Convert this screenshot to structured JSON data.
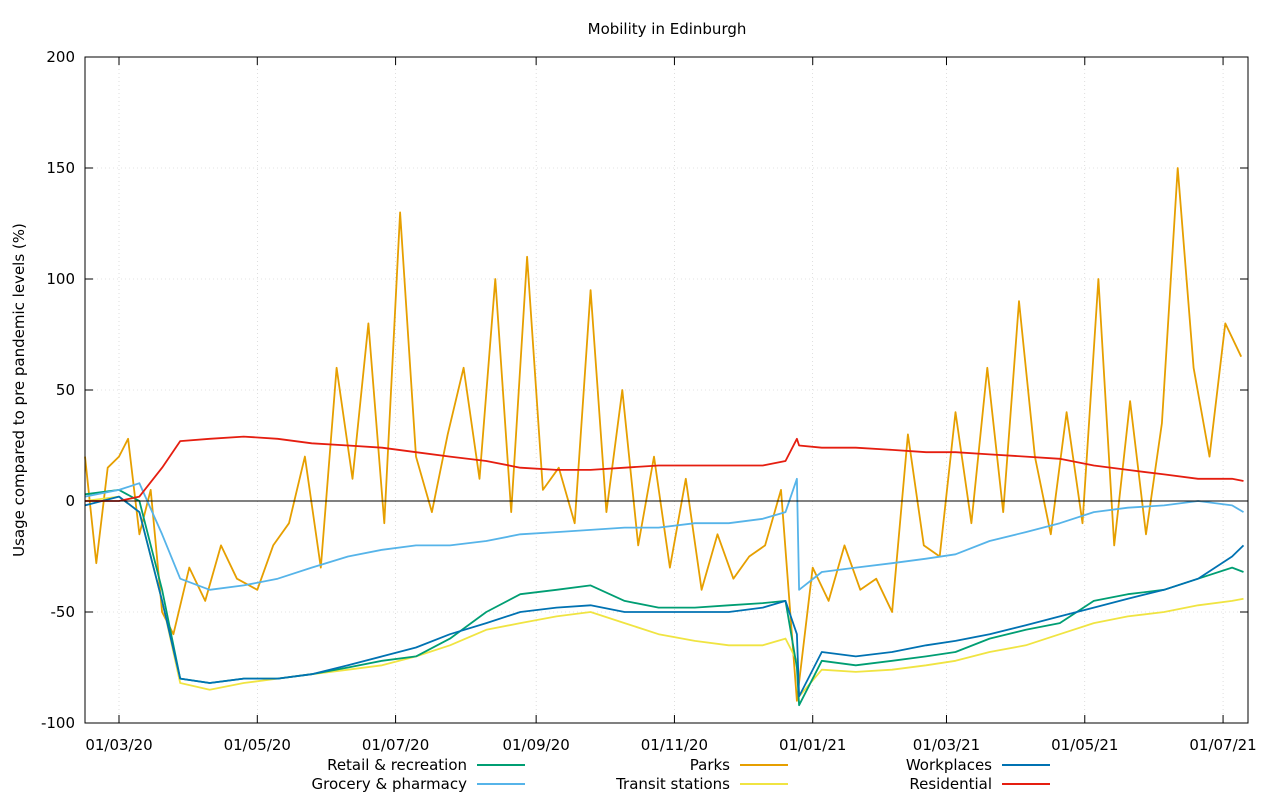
{
  "chart_data": {
    "type": "line",
    "title": "Mobility in Edinburgh",
    "ylabel": "Usage compared to pre pandemic levels (%)",
    "xlabel": "",
    "xlim": [
      "2020-02-15",
      "2021-07-12"
    ],
    "ylim": [
      -100,
      200
    ],
    "y_ticks": [
      -100,
      -50,
      0,
      50,
      100,
      150,
      200
    ],
    "x_ticks": [
      "01/03/20",
      "01/05/20",
      "01/07/20",
      "01/09/20",
      "01/11/20",
      "01/01/21",
      "01/03/21",
      "01/05/21",
      "01/07/21"
    ],
    "x_tick_dates": [
      "2020-03-01",
      "2020-05-01",
      "2020-07-01",
      "2020-09-01",
      "2020-11-01",
      "2021-01-01",
      "2021-03-01",
      "2021-05-01",
      "2021-07-01"
    ],
    "grid": true,
    "zero_line": true,
    "legend_position": "bottom",
    "series": [
      {
        "name": "Retail & recreation",
        "color": "#009e73",
        "dates": [
          "2020-02-15",
          "2020-03-01",
          "2020-03-10",
          "2020-03-20",
          "2020-03-28",
          "2020-04-10",
          "2020-04-25",
          "2020-05-10",
          "2020-05-25",
          "2020-06-10",
          "2020-06-25",
          "2020-07-10",
          "2020-07-25",
          "2020-08-10",
          "2020-08-25",
          "2020-09-10",
          "2020-09-25",
          "2020-10-10",
          "2020-10-25",
          "2020-11-10",
          "2020-11-25",
          "2020-12-10",
          "2020-12-20",
          "2020-12-25",
          "2020-12-26",
          "2021-01-05",
          "2021-01-20",
          "2021-02-05",
          "2021-02-20",
          "2021-03-05",
          "2021-03-20",
          "2021-04-05",
          "2021-04-20",
          "2021-05-05",
          "2021-05-20",
          "2021-06-05",
          "2021-06-20",
          "2021-07-05",
          "2021-07-10"
        ],
        "values": [
          3,
          5,
          0,
          -40,
          -80,
          -82,
          -80,
          -80,
          -78,
          -75,
          -72,
          -70,
          -62,
          -50,
          -42,
          -40,
          -38,
          -45,
          -48,
          -48,
          -47,
          -46,
          -45,
          -75,
          -92,
          -72,
          -74,
          -72,
          -70,
          -68,
          -62,
          -58,
          -55,
          -45,
          -42,
          -40,
          -35,
          -30,
          -32
        ]
      },
      {
        "name": "Grocery & pharmacy",
        "color": "#56b4e9",
        "dates": [
          "2020-02-15",
          "2020-03-01",
          "2020-03-10",
          "2020-03-20",
          "2020-03-28",
          "2020-04-10",
          "2020-04-25",
          "2020-05-10",
          "2020-05-25",
          "2020-06-10",
          "2020-06-25",
          "2020-07-10",
          "2020-07-25",
          "2020-08-10",
          "2020-08-25",
          "2020-09-10",
          "2020-09-25",
          "2020-10-10",
          "2020-10-25",
          "2020-11-10",
          "2020-11-25",
          "2020-12-10",
          "2020-12-20",
          "2020-12-25",
          "2020-12-26",
          "2021-01-05",
          "2021-01-20",
          "2021-02-05",
          "2021-02-20",
          "2021-03-05",
          "2021-03-20",
          "2021-04-05",
          "2021-04-20",
          "2021-05-05",
          "2021-05-20",
          "2021-06-05",
          "2021-06-20",
          "2021-07-05",
          "2021-07-10"
        ],
        "values": [
          2,
          5,
          8,
          -15,
          -35,
          -40,
          -38,
          -35,
          -30,
          -25,
          -22,
          -20,
          -20,
          -18,
          -15,
          -14,
          -13,
          -12,
          -12,
          -10,
          -10,
          -8,
          -5,
          10,
          -40,
          -32,
          -30,
          -28,
          -26,
          -24,
          -18,
          -14,
          -10,
          -5,
          -3,
          -2,
          0,
          -2,
          -5
        ]
      },
      {
        "name": "Parks",
        "color": "#e69f00",
        "dates": [
          "2020-02-15",
          "2020-02-20",
          "2020-02-25",
          "2020-03-01",
          "2020-03-05",
          "2020-03-10",
          "2020-03-15",
          "2020-03-20",
          "2020-03-25",
          "2020-04-01",
          "2020-04-08",
          "2020-04-15",
          "2020-04-22",
          "2020-05-01",
          "2020-05-08",
          "2020-05-15",
          "2020-05-22",
          "2020-05-29",
          "2020-06-05",
          "2020-06-12",
          "2020-06-19",
          "2020-06-26",
          "2020-07-03",
          "2020-07-10",
          "2020-07-17",
          "2020-07-24",
          "2020-07-31",
          "2020-08-07",
          "2020-08-14",
          "2020-08-21",
          "2020-08-28",
          "2020-09-04",
          "2020-09-11",
          "2020-09-18",
          "2020-09-25",
          "2020-10-02",
          "2020-10-09",
          "2020-10-16",
          "2020-10-23",
          "2020-10-30",
          "2020-11-06",
          "2020-11-13",
          "2020-11-20",
          "2020-11-27",
          "2020-12-04",
          "2020-12-11",
          "2020-12-18",
          "2020-12-25",
          "2021-01-01",
          "2021-01-08",
          "2021-01-15",
          "2021-01-22",
          "2021-01-29",
          "2021-02-05",
          "2021-02-12",
          "2021-02-19",
          "2021-02-26",
          "2021-03-05",
          "2021-03-12",
          "2021-03-19",
          "2021-03-26",
          "2021-04-02",
          "2021-04-09",
          "2021-04-16",
          "2021-04-23",
          "2021-04-30",
          "2021-05-07",
          "2021-05-14",
          "2021-05-21",
          "2021-05-28",
          "2021-06-04",
          "2021-06-11",
          "2021-06-18",
          "2021-06-25",
          "2021-07-02",
          "2021-07-09"
        ],
        "values": [
          20,
          -28,
          15,
          20,
          28,
          -15,
          5,
          -50,
          -60,
          -30,
          -45,
          -20,
          -35,
          -40,
          -20,
          -10,
          20,
          -30,
          60,
          10,
          80,
          -10,
          130,
          20,
          -5,
          30,
          60,
          10,
          100,
          -5,
          110,
          5,
          15,
          -10,
          95,
          -5,
          50,
          -20,
          20,
          -30,
          10,
          -40,
          -15,
          -35,
          -25,
          -20,
          5,
          -90,
          -30,
          -45,
          -20,
          -40,
          -35,
          -50,
          30,
          -20,
          -25,
          40,
          -10,
          60,
          -5,
          90,
          20,
          -15,
          40,
          -10,
          100,
          -20,
          45,
          -15,
          35,
          150,
          60,
          20,
          80,
          65
        ]
      },
      {
        "name": "Transit stations",
        "color": "#f0e442",
        "dates": [
          "2020-02-15",
          "2020-03-01",
          "2020-03-10",
          "2020-03-20",
          "2020-03-28",
          "2020-04-10",
          "2020-04-25",
          "2020-05-10",
          "2020-05-25",
          "2020-06-10",
          "2020-06-25",
          "2020-07-10",
          "2020-07-25",
          "2020-08-10",
          "2020-08-25",
          "2020-09-10",
          "2020-09-25",
          "2020-10-10",
          "2020-10-25",
          "2020-11-10",
          "2020-11-25",
          "2020-12-10",
          "2020-12-20",
          "2020-12-25",
          "2020-12-26",
          "2021-01-05",
          "2021-01-20",
          "2021-02-05",
          "2021-02-20",
          "2021-03-05",
          "2021-03-20",
          "2021-04-05",
          "2021-04-20",
          "2021-05-05",
          "2021-05-20",
          "2021-06-05",
          "2021-06-20",
          "2021-07-05",
          "2021-07-10"
        ],
        "values": [
          0,
          2,
          -5,
          -45,
          -82,
          -85,
          -82,
          -80,
          -78,
          -76,
          -74,
          -70,
          -65,
          -58,
          -55,
          -52,
          -50,
          -55,
          -60,
          -63,
          -65,
          -65,
          -62,
          -72,
          -88,
          -76,
          -77,
          -76,
          -74,
          -72,
          -68,
          -65,
          -60,
          -55,
          -52,
          -50,
          -47,
          -45,
          -44
        ]
      },
      {
        "name": "Workplaces",
        "color": "#0072b2",
        "dates": [
          "2020-02-15",
          "2020-03-01",
          "2020-03-10",
          "2020-03-20",
          "2020-03-28",
          "2020-04-10",
          "2020-04-25",
          "2020-05-10",
          "2020-05-25",
          "2020-06-10",
          "2020-06-25",
          "2020-07-10",
          "2020-07-25",
          "2020-08-10",
          "2020-08-25",
          "2020-09-10",
          "2020-09-25",
          "2020-10-10",
          "2020-10-25",
          "2020-11-10",
          "2020-11-25",
          "2020-12-10",
          "2020-12-20",
          "2020-12-25",
          "2020-12-26",
          "2021-01-05",
          "2021-01-20",
          "2021-02-05",
          "2021-02-20",
          "2021-03-05",
          "2021-03-20",
          "2021-04-05",
          "2021-04-20",
          "2021-05-05",
          "2021-05-20",
          "2021-06-05",
          "2021-06-20",
          "2021-07-05",
          "2021-07-10"
        ],
        "values": [
          -2,
          2,
          -5,
          -45,
          -80,
          -82,
          -80,
          -80,
          -78,
          -74,
          -70,
          -66,
          -60,
          -55,
          -50,
          -48,
          -47,
          -50,
          -50,
          -50,
          -50,
          -48,
          -45,
          -60,
          -88,
          -68,
          -70,
          -68,
          -65,
          -63,
          -60,
          -56,
          -52,
          -48,
          -44,
          -40,
          -35,
          -25,
          -20
        ]
      },
      {
        "name": "Residential",
        "color": "#e51e10",
        "dates": [
          "2020-02-15",
          "2020-03-01",
          "2020-03-10",
          "2020-03-20",
          "2020-03-28",
          "2020-04-10",
          "2020-04-25",
          "2020-05-10",
          "2020-05-25",
          "2020-06-10",
          "2020-06-25",
          "2020-07-10",
          "2020-07-25",
          "2020-08-10",
          "2020-08-25",
          "2020-09-10",
          "2020-09-25",
          "2020-10-10",
          "2020-10-25",
          "2020-11-10",
          "2020-11-25",
          "2020-12-10",
          "2020-12-20",
          "2020-12-25",
          "2020-12-26",
          "2021-01-05",
          "2021-01-20",
          "2021-02-05",
          "2021-02-20",
          "2021-03-05",
          "2021-03-20",
          "2021-04-05",
          "2021-04-20",
          "2021-05-05",
          "2021-05-20",
          "2021-06-05",
          "2021-06-20",
          "2021-07-05",
          "2021-07-10"
        ],
        "values": [
          0,
          0,
          2,
          15,
          27,
          28,
          29,
          28,
          26,
          25,
          24,
          22,
          20,
          18,
          15,
          14,
          14,
          15,
          16,
          16,
          16,
          16,
          18,
          28,
          25,
          24,
          24,
          23,
          22,
          22,
          21,
          20,
          19,
          16,
          14,
          12,
          10,
          10,
          9
        ]
      }
    ]
  }
}
